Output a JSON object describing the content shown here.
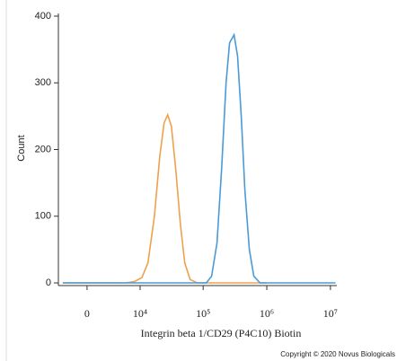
{
  "chart_data": {
    "type": "line",
    "x_label": "Integrin beta 1/CD29 (P4C10) Biotin",
    "y_label": "Count",
    "annotations": [
      "Copyright © 2020 Novus Biologicals"
    ],
    "xscale": "biexponential",
    "xlim": [
      -3700,
      12600000
    ],
    "xticks": [
      0,
      {
        "value": 10000,
        "label": "10⁴"
      },
      {
        "value": 100000,
        "label": "10⁵"
      },
      {
        "value": 1000000,
        "label": "10⁶"
      },
      {
        "value": 10000000,
        "label": "10⁷"
      }
    ],
    "ylim": [
      -4,
      404
    ],
    "yticks": [
      0,
      100,
      200,
      300,
      400
    ],
    "series": [
      {
        "color": "#f0a04a",
        "x": [
          -3000,
          5700,
          8100,
          10700,
          13400,
          17000,
          20700,
          24300,
          27700,
          31600,
          37100,
          43700,
          51400,
          62400,
          81000,
          1000000
        ],
        "values": [
          0,
          0,
          2,
          8,
          30,
          100,
          190,
          240,
          252,
          235,
          170,
          90,
          30,
          5,
          0,
          0
        ]
      },
      {
        "color": "#4a9ad8",
        "x": [
          -3000,
          112000,
          136000,
          165000,
          195000,
          229000,
          260000,
          306000,
          348000,
          397000,
          452000,
          532000,
          625000,
          784000,
          12000000
        ],
        "values": [
          0,
          0,
          10,
          60,
          170,
          300,
          360,
          372,
          340,
          250,
          140,
          50,
          10,
          0,
          0
        ]
      }
    ]
  }
}
